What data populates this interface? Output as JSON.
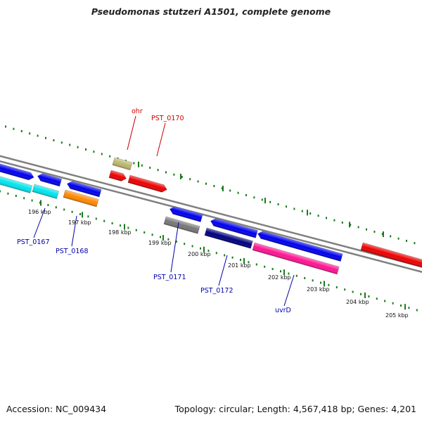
{
  "title": "Pseudomonas stutzeri A1501, complete genome",
  "footer": {
    "accession": "Accession: NC_009434",
    "topology": "Topology: circular; Length: 4,567,418 bp; Genes: 4,201"
  },
  "colors": {
    "backbone": "#808080",
    "tick": "#1a7a1a",
    "label_red": "#cc0000",
    "label_blue": "#0000aa"
  },
  "scale_labels": [
    "196 kbp",
    "197 kbp",
    "198 kbp",
    "199 kbp",
    "200 kbp",
    "201 kbp",
    "202 kbp",
    "203 kbp",
    "204 kbp",
    "205 kbp"
  ],
  "gene_labels": [
    {
      "text": "ohr",
      "color": "#cc0000"
    },
    {
      "text": "PST_0170",
      "color": "#cc0000"
    },
    {
      "text": "PST_0167",
      "color": "#0000aa"
    },
    {
      "text": "PST_0168",
      "color": "#0000aa"
    },
    {
      "text": "PST_0171",
      "color": "#0000aa"
    },
    {
      "text": "PST_0172",
      "color": "#0000aa"
    },
    {
      "text": "uvrD",
      "color": "#0000aa"
    }
  ],
  "features": [
    {
      "name": "gene-blue-1",
      "color": "#0000ee",
      "dir": "fwd"
    },
    {
      "name": "gene-blue-2",
      "color": "#0000ee",
      "dir": "rev"
    },
    {
      "name": "gene-blue-3",
      "color": "#0000ee",
      "dir": "rev"
    },
    {
      "name": "gene-cyan-1",
      "color": "#00e5ee",
      "dir": "none"
    },
    {
      "name": "gene-cyan-2",
      "color": "#00e5ee",
      "dir": "none"
    },
    {
      "name": "gene-orange",
      "color": "#ff8800",
      "dir": "none"
    },
    {
      "name": "gene-khaki",
      "color": "#bdb76b",
      "dir": "none"
    },
    {
      "name": "gene-red-small",
      "color": "#ee0000",
      "dir": "fwd"
    },
    {
      "name": "gene-red-long",
      "color": "#ee0000",
      "dir": "fwd"
    },
    {
      "name": "gene-blue-4",
      "color": "#0000ee",
      "dir": "rev"
    },
    {
      "name": "gene-gray",
      "color": "#777777",
      "dir": "none"
    },
    {
      "name": "gene-blue-5",
      "color": "#0000ee",
      "dir": "rev"
    },
    {
      "name": "gene-navy",
      "color": "#000080",
      "dir": "none"
    },
    {
      "name": "gene-blue-6",
      "color": "#0000ee",
      "dir": "rev"
    },
    {
      "name": "gene-pink",
      "color": "#ff1493",
      "dir": "none"
    },
    {
      "name": "gene-red-right",
      "color": "#ee0000",
      "dir": "none"
    }
  ]
}
